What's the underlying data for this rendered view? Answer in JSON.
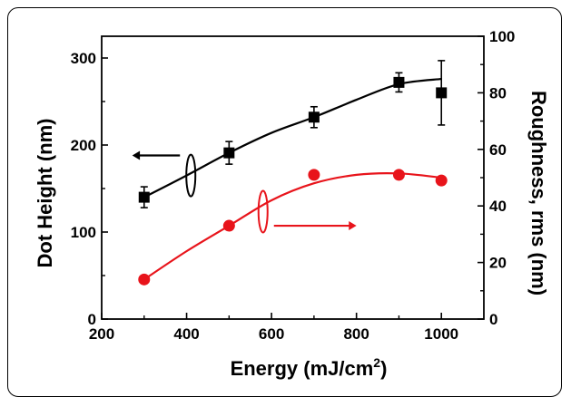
{
  "chart_data": {
    "type": "line",
    "xlabel": "Energy (mJ/cm",
    "xlabel_sup": "2",
    "xlabel_close": ")",
    "ylabel_left": "Dot Height (nm)",
    "ylabel_right": "Roughness, rms (nm)",
    "xlim": [
      200,
      1100
    ],
    "ylim_left": [
      0,
      325
    ],
    "ylim_right": [
      0,
      100
    ],
    "xticks": [
      200,
      400,
      600,
      800,
      1000
    ],
    "yticks_left": [
      0,
      100,
      200,
      300
    ],
    "yticks_right": [
      0,
      20,
      40,
      60,
      80,
      100
    ],
    "series": [
      {
        "axis": "left",
        "color": "#000000",
        "marker": "square",
        "x": [
          300,
          500,
          700,
          900,
          1000
        ],
        "y": [
          140,
          191,
          232,
          272,
          260
        ],
        "yerr": [
          12,
          13,
          12,
          11,
          37
        ],
        "fit": [
          [
            300,
            140
          ],
          [
            400,
            165
          ],
          [
            500,
            191
          ],
          [
            600,
            214
          ],
          [
            700,
            232
          ],
          [
            800,
            252
          ],
          [
            900,
            270
          ],
          [
            1000,
            276
          ]
        ]
      },
      {
        "axis": "right",
        "color": "#e8141b",
        "marker": "circle",
        "x": [
          300,
          500,
          700,
          900,
          1000
        ],
        "y": [
          14,
          33,
          51,
          51,
          49
        ],
        "fit": [
          [
            300,
            14
          ],
          [
            400,
            24
          ],
          [
            500,
            33
          ],
          [
            600,
            42
          ],
          [
            700,
            48
          ],
          [
            800,
            51
          ],
          [
            900,
            51.5
          ],
          [
            1000,
            50
          ]
        ]
      }
    ]
  }
}
